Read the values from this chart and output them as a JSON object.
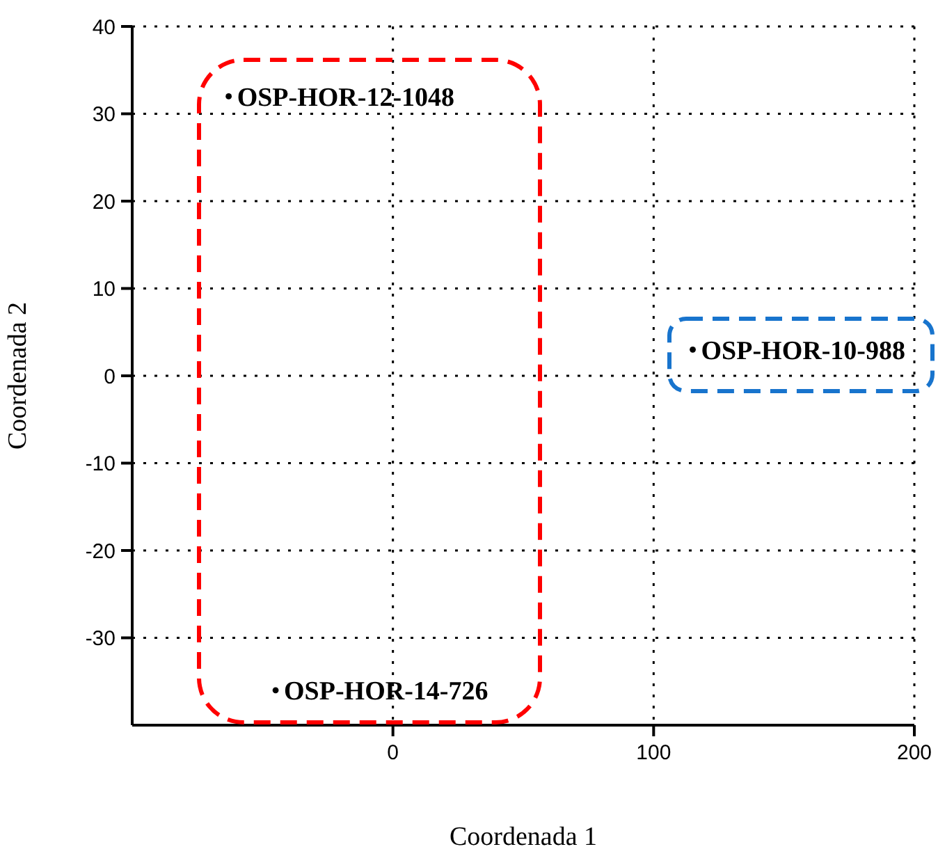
{
  "chart_data": {
    "type": "scatter",
    "xlabel": "Coordenada 1",
    "ylabel": "Coordenada 2",
    "xlim": [
      -100,
      200
    ],
    "xticks": [
      0,
      100,
      200
    ],
    "ylim": [
      -40,
      40
    ],
    "yticks": [
      -30,
      -20,
      -10,
      0,
      10,
      20,
      30,
      40
    ],
    "grid": true,
    "legend": false,
    "marker": "circle",
    "series": [
      {
        "color": "#000000",
        "x": [
          -63,
          115,
          -45
        ],
        "values": [
          32,
          3,
          -36
        ],
        "value_labels": [
          "OSP-HOR-12-1048",
          "OSP-HOR-10-988",
          "OSP-HOR-14-726"
        ]
      }
    ]
  }
}
